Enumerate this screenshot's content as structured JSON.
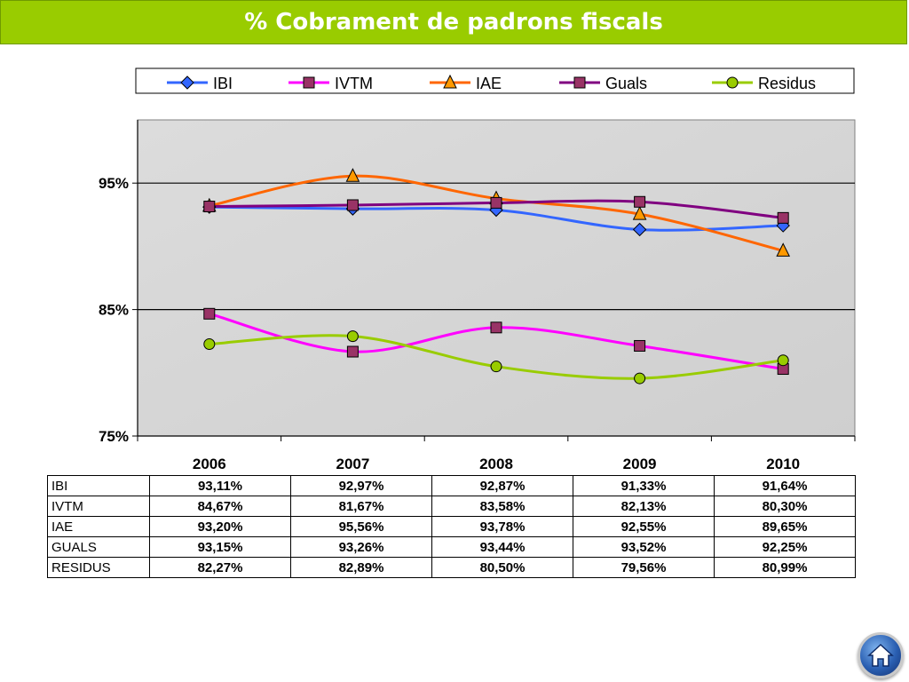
{
  "title": "% Cobrament de padrons fiscals",
  "chart_data": {
    "type": "line",
    "categories": [
      "2006",
      "2007",
      "2008",
      "2009",
      "2010"
    ],
    "ylim": [
      75,
      100
    ],
    "yticks": [
      75,
      85,
      95
    ],
    "ytick_labels": [
      "75%",
      "85%",
      "95%"
    ],
    "legend_position": "top",
    "grid": "horizontal major lines at 85% and 95%",
    "series": [
      {
        "name": "IBI",
        "color": "#3366ff",
        "marker": "diamond",
        "marker_color": "#3366ff",
        "values": [
          93.11,
          92.97,
          92.87,
          91.33,
          91.64
        ]
      },
      {
        "name": "IVTM",
        "color": "#ff00ff",
        "marker": "square",
        "marker_color": "#993366",
        "values": [
          84.67,
          81.67,
          83.58,
          82.13,
          80.3
        ]
      },
      {
        "name": "IAE",
        "color": "#ff6600",
        "marker": "triangle",
        "marker_color": "#ff9900",
        "values": [
          93.2,
          95.56,
          93.78,
          92.55,
          89.65
        ]
      },
      {
        "name": "Guals",
        "color": "#800080",
        "marker": "square",
        "marker_color": "#993366",
        "values": [
          93.15,
          93.26,
          93.44,
          93.52,
          92.25
        ]
      },
      {
        "name": "Residus",
        "color": "#99cc00",
        "marker": "circle",
        "marker_color": "#99cc00",
        "values": [
          82.27,
          82.89,
          80.5,
          79.56,
          80.99
        ]
      }
    ]
  },
  "table": {
    "rows": [
      {
        "label": "IBI",
        "values": [
          "93,11%",
          "92,97%",
          "92,87%",
          "91,33%",
          "91,64%"
        ]
      },
      {
        "label": "IVTM",
        "values": [
          "84,67%",
          "81,67%",
          "83,58%",
          "82,13%",
          "80,30%"
        ]
      },
      {
        "label": "IAE",
        "values": [
          "93,20%",
          "95,56%",
          "93,78%",
          "92,55%",
          "89,65%"
        ]
      },
      {
        "label": "GUALS",
        "values": [
          "93,15%",
          "93,26%",
          "93,44%",
          "93,52%",
          "92,25%"
        ]
      },
      {
        "label": "RESIDUS",
        "values": [
          "82,27%",
          "82,89%",
          "80,50%",
          "79,56%",
          "80,99%"
        ]
      }
    ]
  },
  "icons": {
    "home": "home-icon"
  }
}
